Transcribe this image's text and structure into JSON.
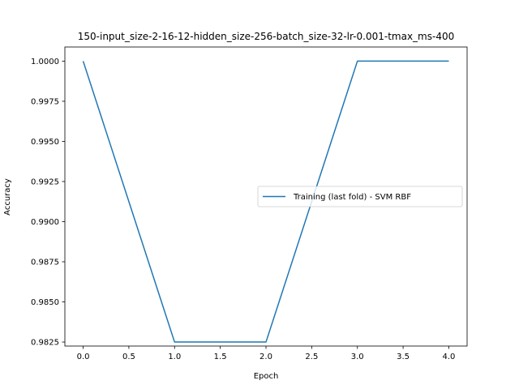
{
  "chart_data": {
    "type": "line",
    "title": "150-input_size-2-16-12-hidden_size-256-batch_size-32-lr-0.001-tmax_ms-400",
    "xlabel": "Epoch",
    "ylabel": "Accuracy",
    "xlim": [
      -0.2,
      4.2
    ],
    "ylim": [
      0.98225,
      1.00088
    ],
    "x_ticks": [
      0.0,
      0.5,
      1.0,
      1.5,
      2.0,
      2.5,
      3.0,
      3.5,
      4.0
    ],
    "x_tick_labels": [
      "0.0",
      "0.5",
      "1.0",
      "1.5",
      "2.0",
      "2.5",
      "3.0",
      "3.5",
      "4.0"
    ],
    "y_ticks": [
      0.9825,
      0.985,
      0.9875,
      0.99,
      0.9925,
      0.995,
      0.9975,
      1.0
    ],
    "y_tick_labels": [
      "0.9825",
      "0.9850",
      "0.9875",
      "0.9900",
      "0.9925",
      "0.9950",
      "0.9975",
      "1.0000"
    ],
    "grid": false,
    "legend_position": "center-right",
    "series": [
      {
        "name": "Training (last fold) - SVM RBF",
        "color": "#1f77b4",
        "x": [
          0,
          1,
          2,
          3,
          4
        ],
        "values": [
          1.0,
          0.9825,
          0.9825,
          1.0,
          1.0
        ]
      }
    ]
  }
}
